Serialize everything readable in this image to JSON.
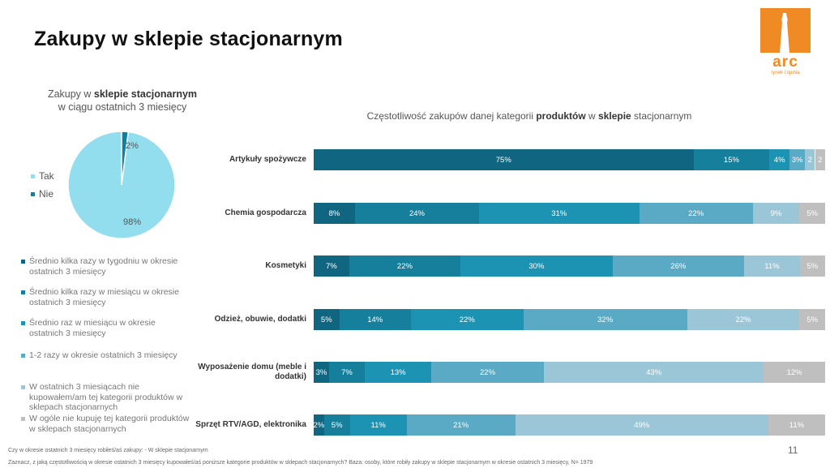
{
  "title": "Zakupy w sklepie stacjonarnym",
  "logo": {
    "text": "arc",
    "subtext": "rynek i opinia"
  },
  "page_number": "11",
  "pie": {
    "title_prefix": "Zakupy w ",
    "title_bold": "sklepie stacjonarnym",
    "title_line2": "w ciągu ostatnich 3 miesięcy"
  },
  "bar_title": {
    "part1": "Częstotliwość zakupów danej kategorii ",
    "bold1": "produktów",
    "part2": " w ",
    "bold2": "sklepie",
    "part3": " stacjonarnym"
  },
  "footnotes": [
    "Czy w okresie ostatnich 3 miesięcy robiłeś/aś zakupy: - W sklepie stacjonarnym",
    "Zaznacz, z jaką częstotliwością w okresie ostatnich 3 miesięcy kupowałeś/aś poniższe kategorie produktów w sklepach stacjonarnych? Baza: osoby, które robiły zakupy w sklepie stacjonarnym w okresie ostatnich 3 miesięcy, N= 1979"
  ],
  "chart_data": [
    {
      "type": "pie",
      "categories": [
        "Tak",
        "Nie"
      ],
      "values": [
        98,
        2
      ],
      "labels": [
        "98%",
        "2%"
      ],
      "colors": [
        "#92ddee",
        "#127fa0"
      ],
      "legend_position": "left"
    },
    {
      "type": "bar",
      "orientation": "horizontal",
      "stacked": "100%",
      "categories": [
        "Artykuły spożywcze",
        "Chemia gospodarcza",
        "Kosmetyki",
        "Odzież, obuwie, dodatki",
        "Wyposażenie domu (meble i dodatki)",
        "Sprzęt RTV/AGD, elektronika"
      ],
      "series": [
        {
          "name": "Średnio kilka razy w tygodniu w okresie ostatnich 3 miesięcy",
          "color": "#106681",
          "text_color": "#ffffff",
          "values": [
            75,
            8,
            7,
            5,
            3,
            2
          ],
          "labels": [
            "75%",
            "8%",
            "7%",
            "5%",
            "3%",
            "2%"
          ]
        },
        {
          "name": "Średnio kilka razy w miesiącu w okresie ostatnich 3 miesięcy",
          "color": "#167f9c",
          "text_color": "#ffffff",
          "values": [
            15,
            24,
            22,
            14,
            7,
            5
          ],
          "labels": [
            "15%",
            "24%",
            "22%",
            "14%",
            "7%",
            "5%"
          ]
        },
        {
          "name": "Średnio raz w miesiącu w okresie ostatnich 3 miesięcy",
          "color": "#1c93b3",
          "text_color": "#ffffff",
          "values": [
            4,
            31,
            30,
            22,
            13,
            11
          ],
          "labels": [
            "4%",
            "31%",
            "30%",
            "22%",
            "13%",
            "11%"
          ]
        },
        {
          "name": "1-2 razy w okresie ostatnich 3 miesięcy",
          "color": "#5aa9c5",
          "text_color": "#ffffff",
          "values": [
            3,
            22,
            26,
            32,
            22,
            21
          ],
          "labels": [
            "3%",
            "22%",
            "26%",
            "32%",
            "22%",
            "21%"
          ]
        },
        {
          "name": "W ostatnich 3 miesiącach nie kupowałem/am tej kategorii produktów w sklepach stacjonarnych",
          "color": "#9ac6d8",
          "text_color": "#ffffff",
          "values": [
            2,
            9,
            11,
            22,
            43,
            49
          ],
          "labels": [
            "2",
            "9%",
            "11%",
            "22%",
            "43%",
            "49%"
          ]
        },
        {
          "name": "W ogóle nie kupuję tej kategorii produktów w sklepach stacjonarnych",
          "color": "#bfbfbf",
          "text_color": "#ffffff",
          "values": [
            2,
            5,
            5,
            5,
            12,
            11
          ],
          "labels": [
            "2",
            "5%",
            "5%",
            "5%",
            "12%",
            "11%"
          ]
        }
      ],
      "legend_position": "left"
    }
  ]
}
